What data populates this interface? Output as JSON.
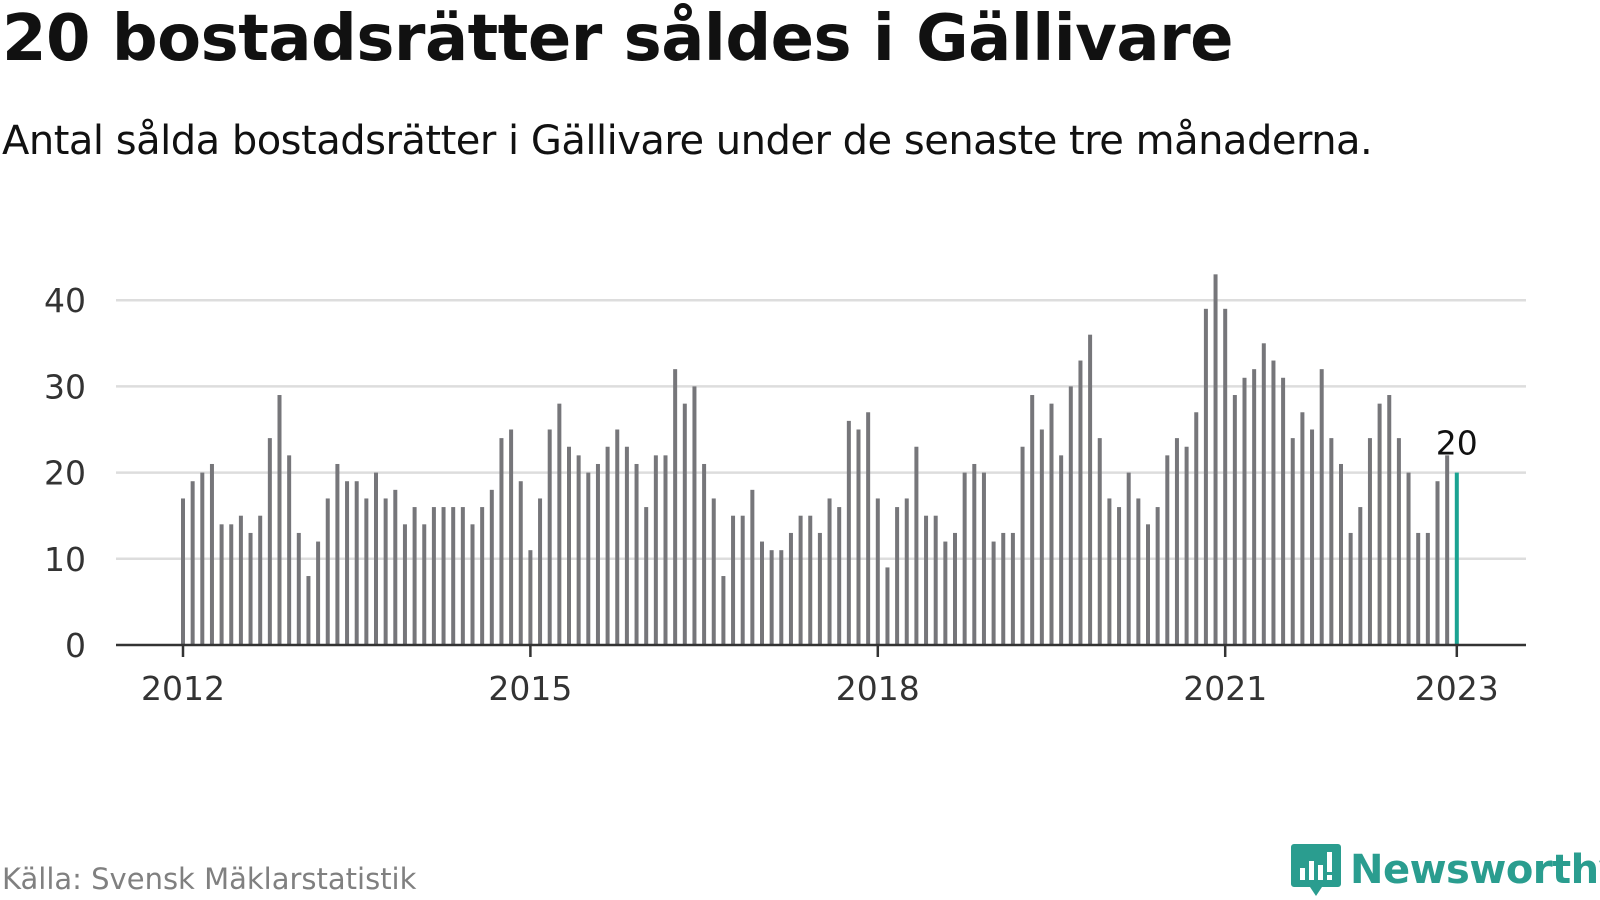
{
  "header": {
    "title": "20 bostadsrätter såldes i Gällivare",
    "subtitle": "Antal sålda bostadsrätter i Gällivare under de senaste tre månaderna."
  },
  "footer": {
    "source": "Källa: Svensk Mäklarstatistik",
    "brand": "Newsworthy"
  },
  "colors": {
    "bar": "#76767a",
    "highlight": "#1aa392",
    "grid": "#dddddd",
    "axis": "#333333",
    "brand": "#2a9d8f"
  },
  "chart_data": {
    "type": "bar",
    "title": "20 bostadsrätter såldes i Gällivare",
    "subtitle": "Antal sålda bostadsrätter i Gällivare under de senaste tre månaderna.",
    "xlabel": "",
    "ylabel": "",
    "ylim": [
      0,
      45
    ],
    "yticks": [
      0,
      10,
      20,
      30,
      40
    ],
    "xticks": [
      "2012",
      "2015",
      "2018",
      "2021",
      "2023"
    ],
    "xtick_positions": [
      0,
      36,
      72,
      108,
      132
    ],
    "x_start": "2012-01",
    "x_end": "2023-01",
    "grid": true,
    "annotation": {
      "index": 132,
      "label": "20"
    },
    "values": [
      17,
      19,
      20,
      21,
      14,
      14,
      15,
      13,
      15,
      24,
      29,
      22,
      13,
      8,
      12,
      17,
      21,
      19,
      19,
      17,
      20,
      17,
      18,
      14,
      16,
      14,
      16,
      16,
      16,
      16,
      14,
      16,
      18,
      24,
      25,
      19,
      11,
      17,
      25,
      28,
      23,
      22,
      20,
      21,
      23,
      25,
      23,
      21,
      16,
      22,
      22,
      32,
      28,
      30,
      21,
      17,
      8,
      15,
      15,
      18,
      12,
      11,
      11,
      13,
      15,
      15,
      13,
      17,
      16,
      26,
      25,
      27,
      17,
      9,
      16,
      17,
      23,
      15,
      15,
      12,
      13,
      20,
      21,
      20,
      12,
      13,
      13,
      23,
      29,
      25,
      28,
      22,
      30,
      33,
      36,
      24,
      17,
      16,
      20,
      17,
      14,
      16,
      22,
      24,
      23,
      27,
      39,
      43,
      39,
      29,
      31,
      32,
      35,
      33,
      31,
      24,
      27,
      25,
      32,
      24,
      21,
      13,
      16,
      24,
      28,
      29,
      24,
      20,
      13,
      13,
      19,
      22,
      20
    ]
  }
}
